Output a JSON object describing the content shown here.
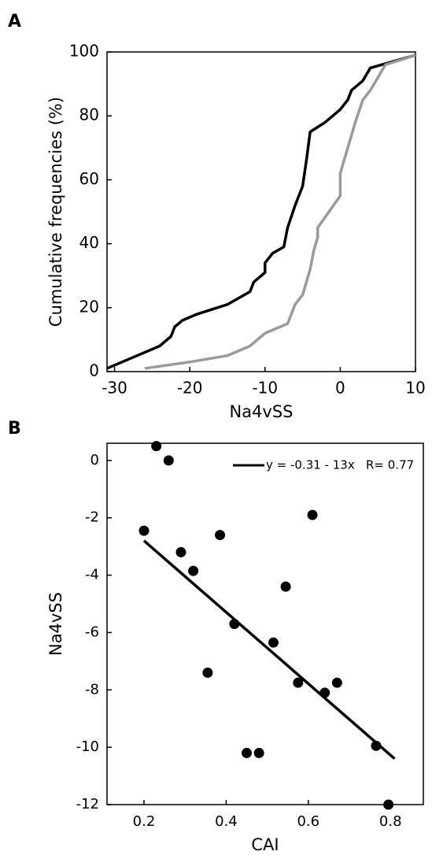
{
  "chart_data": [
    {
      "type": "line",
      "panel": "A",
      "xlabel": "Na4vSS",
      "ylabel": "Cumulative frequencies (%)",
      "xlim": [
        -31,
        10
      ],
      "xticks": [
        -30,
        -20,
        -10,
        0,
        10
      ],
      "ylim": [
        0,
        100
      ],
      "yticks": [
        0,
        20,
        40,
        60,
        80,
        100
      ],
      "grid": false,
      "series": [
        {
          "color": "#000000",
          "x": [
            -31,
            -27,
            -24,
            -22.5,
            -22,
            -21,
            -19,
            -15,
            -12,
            -11.5,
            -10,
            -10,
            -9,
            -7.5,
            -7,
            -6,
            -5,
            -4.5,
            -4,
            -2,
            0,
            1,
            1.5,
            3,
            4,
            7,
            10
          ],
          "values": [
            1,
            5,
            8,
            11,
            14,
            16,
            18,
            21,
            25,
            28,
            31,
            34,
            37,
            39,
            45,
            52,
            58,
            66,
            75,
            78,
            82,
            85,
            88,
            91,
            95,
            97,
            99
          ]
        },
        {
          "color": "#9a9a9a",
          "x": [
            -26,
            -20,
            -15,
            -12,
            -10,
            -7,
            -6,
            -5,
            -4,
            -3.5,
            -3,
            -3,
            -1.5,
            0,
            0,
            1,
            2,
            3,
            4,
            5,
            6,
            10
          ],
          "values": [
            1,
            3,
            5,
            8,
            12,
            15,
            21,
            24,
            32,
            38,
            42,
            45,
            50,
            55,
            62,
            70,
            78,
            85,
            88,
            92,
            96,
            99
          ]
        }
      ]
    },
    {
      "type": "scatter",
      "panel": "B",
      "xlabel": "CAI",
      "ylabel": "Na4vSS",
      "xlim": [
        0.11,
        0.88
      ],
      "xticks": [
        0.2,
        0.4,
        0.6,
        0.8
      ],
      "ylim": [
        -12,
        0.6
      ],
      "yticks": [
        0,
        -2,
        -4,
        -6,
        -8,
        -10,
        -12
      ],
      "grid": false,
      "series": [
        {
          "color": "#000000",
          "x": [
            0.2,
            0.23,
            0.26,
            0.29,
            0.32,
            0.355,
            0.385,
            0.42,
            0.45,
            0.48,
            0.515,
            0.545,
            0.575,
            0.61,
            0.64,
            0.67,
            0.765,
            0.795
          ],
          "values": [
            -2.45,
            0.5,
            0,
            -3.2,
            -3.85,
            -7.4,
            -2.6,
            -5.7,
            -10.2,
            -10.2,
            -6.35,
            -4.4,
            -7.75,
            -1.9,
            -8.1,
            -7.75,
            -9.95,
            -12
          ]
        },
        {
          "type": "line",
          "name": "y = -0.31 - 13x   R= 0.77",
          "color": "#000000",
          "x": [
            0.2,
            0.81
          ],
          "values": [
            -2.8,
            -10.4
          ]
        }
      ]
    }
  ]
}
